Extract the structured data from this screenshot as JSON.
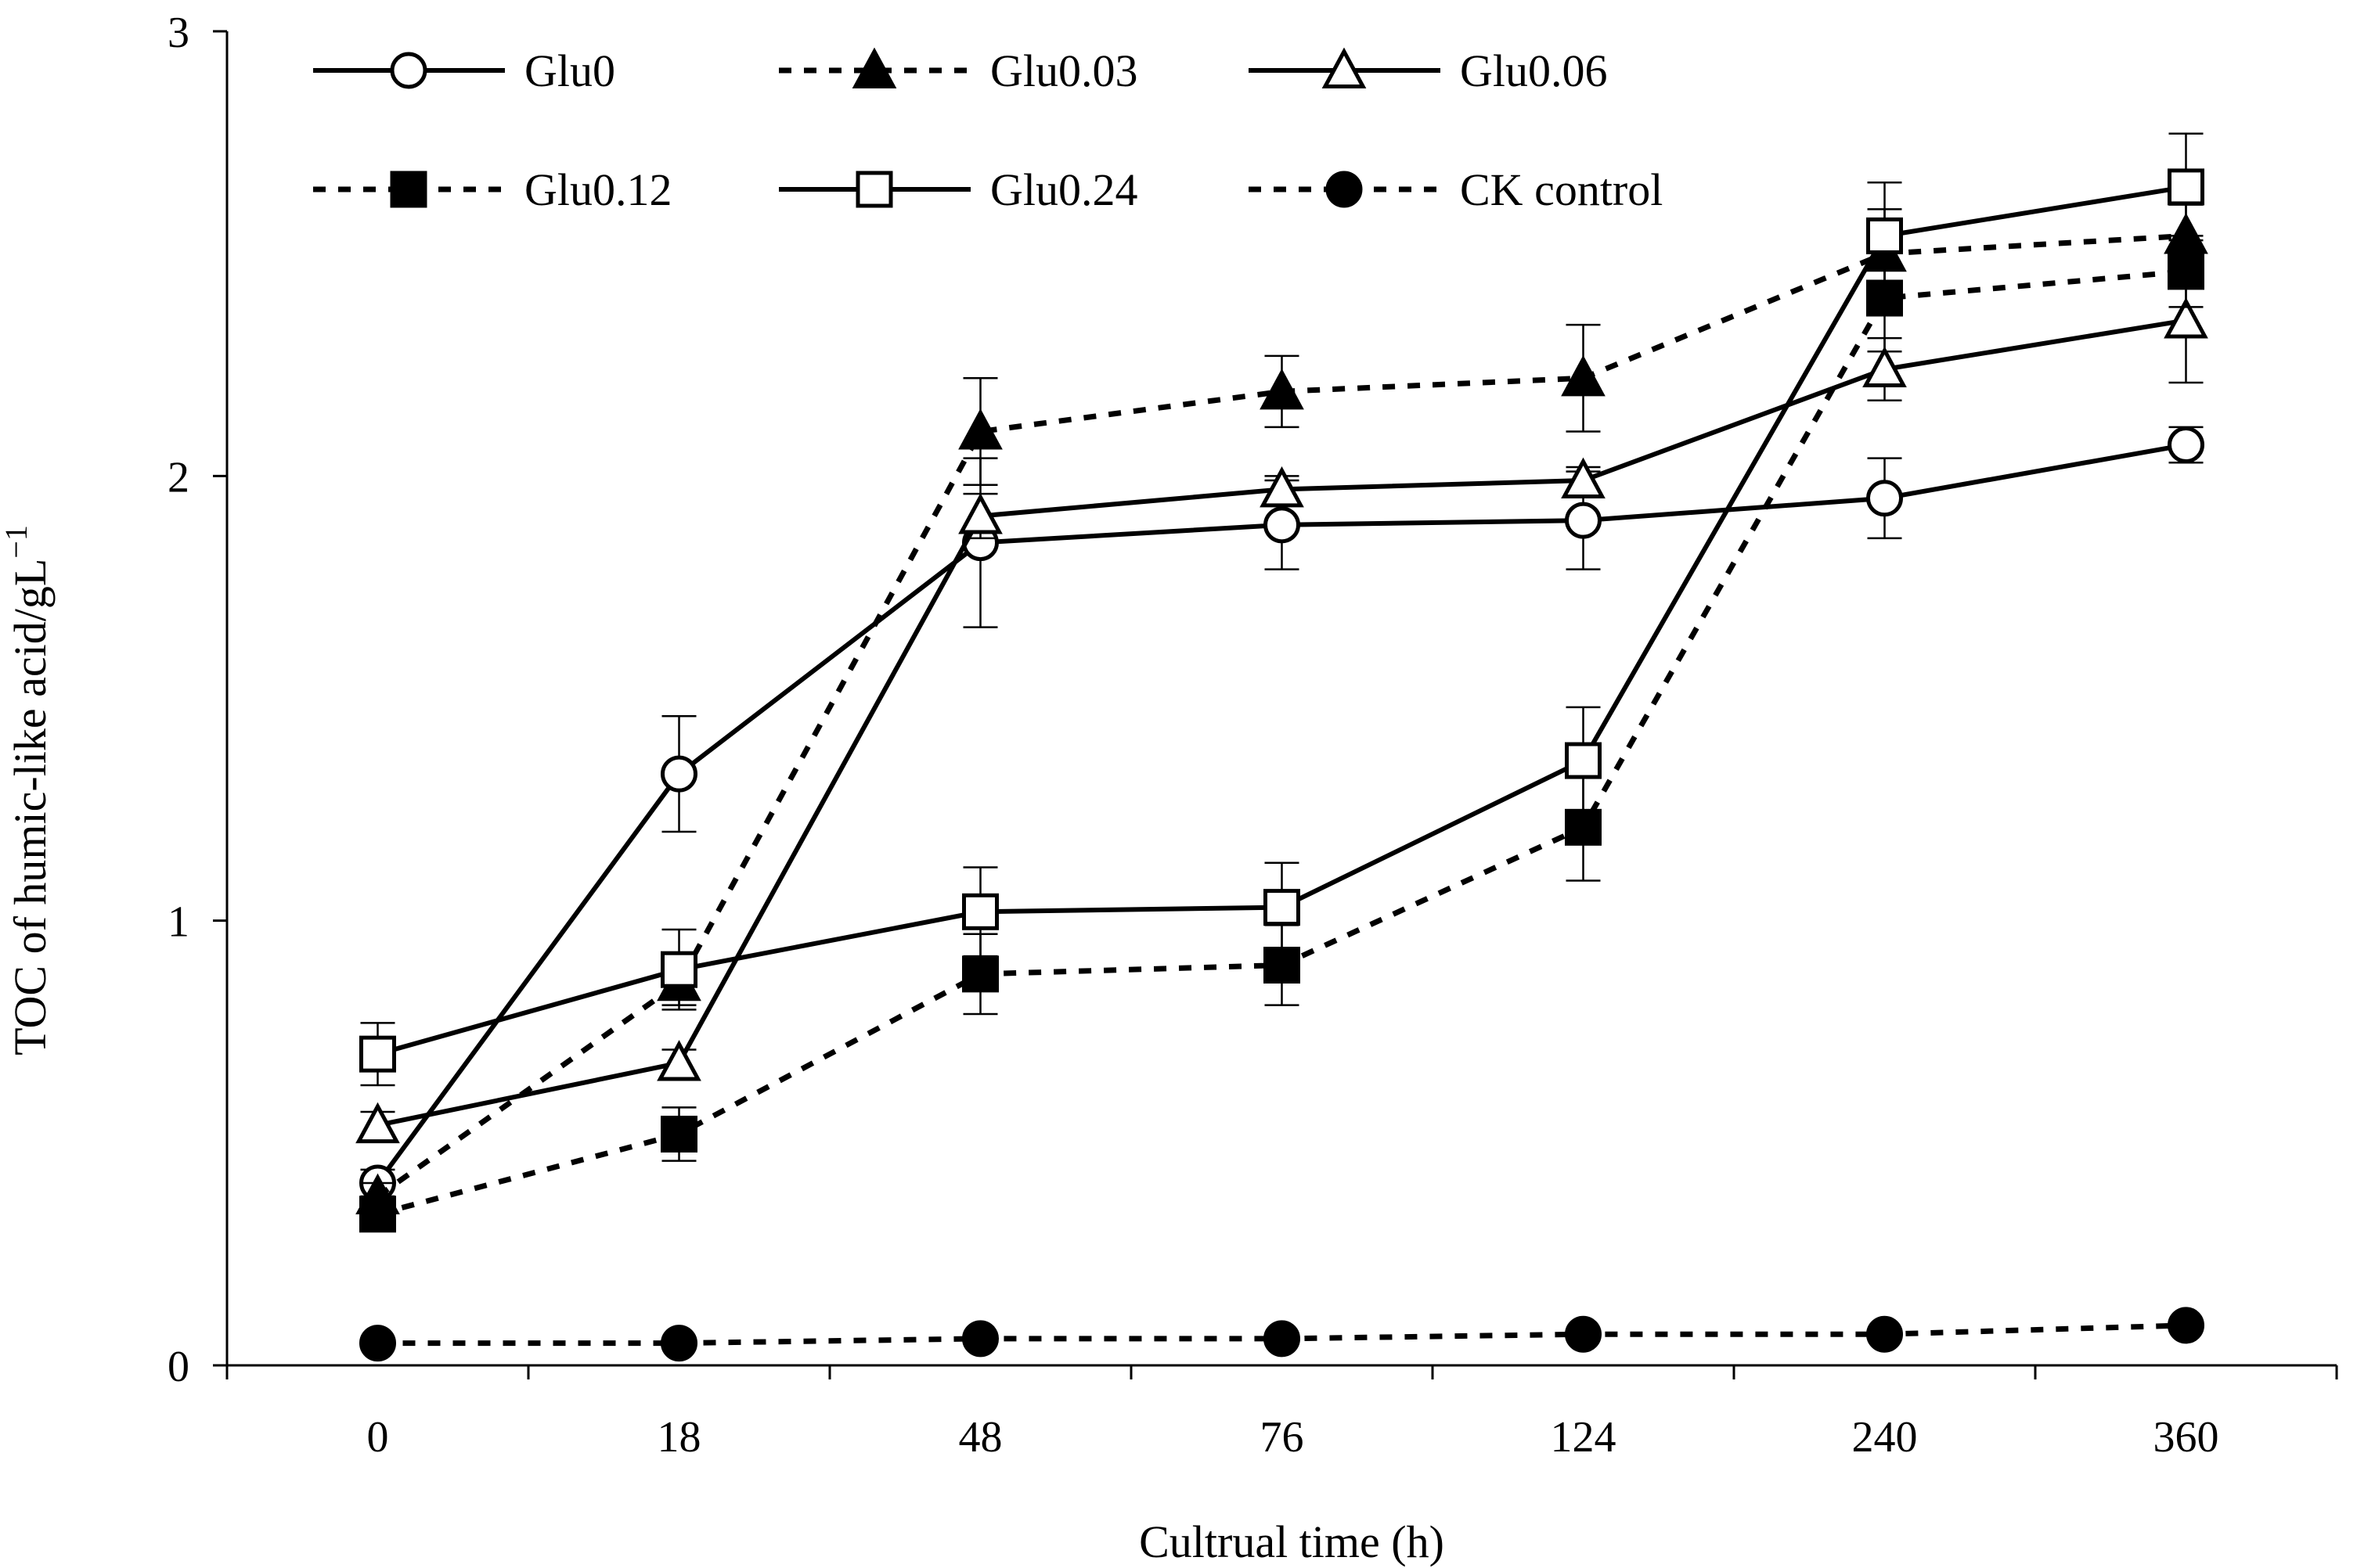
{
  "chart_data": {
    "type": "line",
    "title": "",
    "xlabel": "Cultrual time (h)",
    "ylabel_main": "TOC of humic-like acid/gL",
    "ylabel_sup": "−1",
    "categories": [
      "0",
      "18",
      "48",
      "76",
      "124",
      "240",
      "360"
    ],
    "ylim": [
      0,
      3
    ],
    "yticks": [
      "0",
      "1",
      "2",
      "3"
    ],
    "grid": false,
    "legend_position": "top-left",
    "series": [
      {
        "name": "Glu0",
        "dash": "solid",
        "marker": "circle",
        "filled": false,
        "values": [
          0.41,
          1.33,
          1.85,
          1.89,
          1.9,
          1.95,
          2.07
        ],
        "errors": [
          0.03,
          0.13,
          0.19,
          0.1,
          0.11,
          0.09,
          0.04
        ]
      },
      {
        "name": "Glu0.03",
        "dash": "dashed",
        "marker": "triangle",
        "filled": true,
        "values": [
          0.38,
          0.86,
          2.1,
          2.19,
          2.22,
          2.5,
          2.54
        ],
        "errors": [
          0.03,
          0.05,
          0.12,
          0.08,
          0.12,
          0.1,
          0.07
        ]
      },
      {
        "name": "Glu0.06",
        "dash": "solid",
        "marker": "triangle",
        "filled": false,
        "values": [
          0.54,
          0.68,
          1.91,
          1.97,
          1.99,
          2.24,
          2.35
        ],
        "errors": [
          0.03,
          0.03,
          0.05,
          0.03,
          0.03,
          0.07,
          0.14
        ]
      },
      {
        "name": "Glu0.12",
        "dash": "dashed",
        "marker": "square",
        "filled": true,
        "values": [
          0.34,
          0.52,
          0.88,
          0.9,
          1.21,
          2.4,
          2.46
        ],
        "errors": [
          0.03,
          0.06,
          0.09,
          0.09,
          0.12,
          0.12,
          0.08
        ]
      },
      {
        "name": "Glu0.24",
        "dash": "solid",
        "marker": "square",
        "filled": false,
        "values": [
          0.7,
          0.89,
          1.02,
          1.03,
          1.36,
          2.54,
          2.65
        ],
        "errors": [
          0.07,
          0.09,
          0.1,
          0.1,
          0.12,
          0.12,
          0.12
        ]
      },
      {
        "name": "CK control",
        "dash": "dashed",
        "marker": "circle",
        "filled": true,
        "values": [
          0.05,
          0.05,
          0.06,
          0.06,
          0.07,
          0.07,
          0.09
        ],
        "errors": [
          0.0,
          0.0,
          0.0,
          0.0,
          0.0,
          0.0,
          0.0
        ]
      }
    ]
  }
}
